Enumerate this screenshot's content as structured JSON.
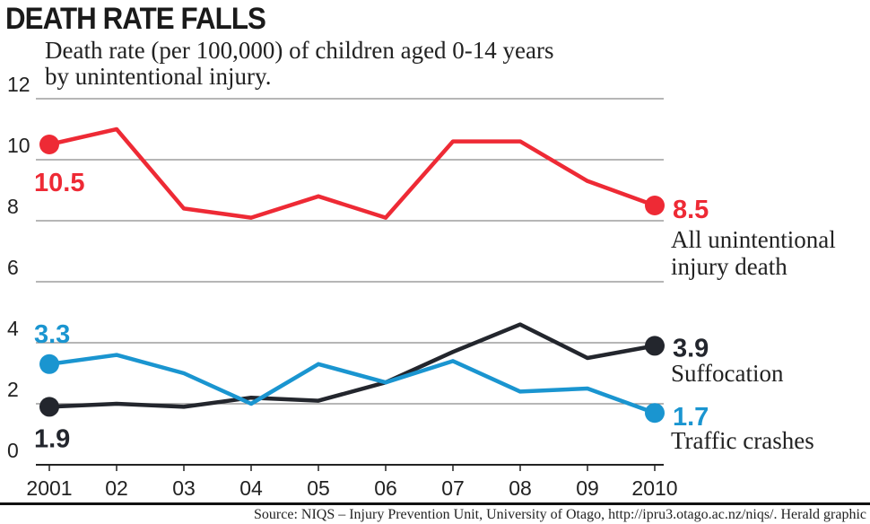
{
  "header": {
    "title": "DEATH RATE FALLS",
    "subtitle_line1": "Death rate (per 100,000) of children aged 0-14 years",
    "subtitle_line2": "by unintentional injury."
  },
  "footer": {
    "source": "Source: NIQS – Injury Prevention Unit, University of Otago, http://ipru3.otago.ac.nz/niqs/. Herald graphic"
  },
  "chart_data": {
    "type": "line",
    "title": "DEATH RATE FALLS",
    "subtitle": "Death rate (per 100,000) of children aged 0-14 years by unintentional injury.",
    "categories": [
      "2001",
      "02",
      "03",
      "04",
      "05",
      "06",
      "07",
      "08",
      "09",
      "2010"
    ],
    "ylim": [
      0,
      12
    ],
    "yticks": [
      0,
      2,
      4,
      6,
      8,
      10,
      12
    ],
    "grid": true,
    "series": [
      {
        "name_line1": "All unintentional",
        "name_line2": "injury death",
        "color": "#ee2a35",
        "values": [
          10.5,
          11.0,
          8.4,
          8.1,
          8.8,
          8.1,
          10.6,
          10.6,
          9.3,
          8.5
        ],
        "start_label": "10.5",
        "end_label": "8.5"
      },
      {
        "name_line1": "Suffocation",
        "name_line2": "",
        "color": "#23262d",
        "values": [
          1.9,
          2.0,
          1.9,
          2.2,
          2.1,
          2.7,
          3.7,
          4.6,
          3.5,
          3.9
        ],
        "start_label": "1.9",
        "end_label": "3.9"
      },
      {
        "name_line1": "Traffic crashes",
        "name_line2": "",
        "color": "#1a95d0",
        "values": [
          3.3,
          3.6,
          3.0,
          2.0,
          3.3,
          2.7,
          3.4,
          2.4,
          2.5,
          1.7
        ],
        "start_label": "3.3",
        "end_label": "1.7"
      }
    ]
  }
}
